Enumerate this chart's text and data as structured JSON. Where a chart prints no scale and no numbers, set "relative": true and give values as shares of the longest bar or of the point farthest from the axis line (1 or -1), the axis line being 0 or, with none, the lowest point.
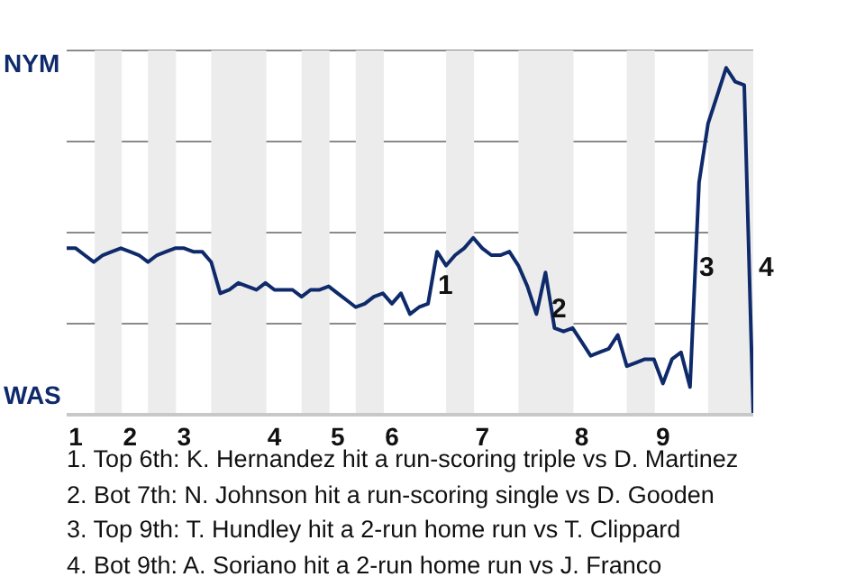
{
  "chart_data": {
    "type": "line",
    "relative": true,
    "categories": [
      null,
      "1",
      null,
      null,
      null,
      null,
      null,
      "2",
      null,
      null,
      null,
      null,
      null,
      "3",
      null,
      null,
      null,
      null,
      null,
      null,
      null,
      null,
      null,
      "4",
      null,
      null,
      null,
      null,
      null,
      null,
      "5",
      null,
      null,
      null,
      null,
      null,
      "6",
      null,
      null,
      null,
      null,
      null,
      null,
      null,
      null,
      null,
      "7",
      null,
      null,
      null,
      null,
      null,
      null,
      null,
      null,
      null,
      null,
      "8",
      null,
      null,
      null,
      null,
      null,
      null,
      null,
      null,
      "9",
      null,
      null,
      null,
      null,
      null,
      null,
      null,
      null,
      null,
      null
    ],
    "series": [
      {
        "color": "#0f2a6b",
        "values": [
          0.48,
          0.48,
          0.46,
          0.44,
          0.46,
          0.47,
          0.48,
          0.47,
          0.46,
          0.44,
          0.46,
          0.47,
          0.48,
          0.48,
          0.47,
          0.47,
          0.44,
          0.35,
          0.36,
          0.38,
          0.37,
          0.36,
          0.38,
          0.36,
          0.36,
          0.36,
          0.34,
          0.36,
          0.36,
          0.37,
          0.35,
          0.33,
          0.31,
          0.32,
          0.34,
          0.35,
          0.32,
          0.35,
          0.29,
          0.31,
          0.32,
          0.47,
          0.43,
          0.46,
          0.48,
          0.51,
          0.48,
          0.46,
          0.46,
          0.47,
          0.43,
          0.37,
          0.29,
          0.41,
          0.25,
          0.24,
          0.25,
          0.21,
          0.17,
          0.18,
          0.19,
          0.23,
          0.14,
          0.15,
          0.16,
          0.16,
          0.09,
          0.16,
          0.18,
          0.08,
          0.67,
          0.84,
          0.92,
          1,
          0.96,
          0.95,
          0
        ]
      }
    ],
    "grid": "y",
    "marker": "none",
    "line_style": "solid",
    "legend": false,
    "annotations": [
      "NYM",
      "WAS",
      "1",
      "2",
      "3",
      "4",
      "1. Top 6th: K. Hernandez hit a run-scoring triple vs D. Martinez",
      "2. Bot 7th: N. Johnson hit a run-scoring single vs D. Gooden",
      "3. Top 9th: T. Hundley hit a 2-run home run vs T. Clippard",
      "4. Bot 9th: A. Soriano hit a 2-run home run vs J. Franco"
    ]
  }
}
